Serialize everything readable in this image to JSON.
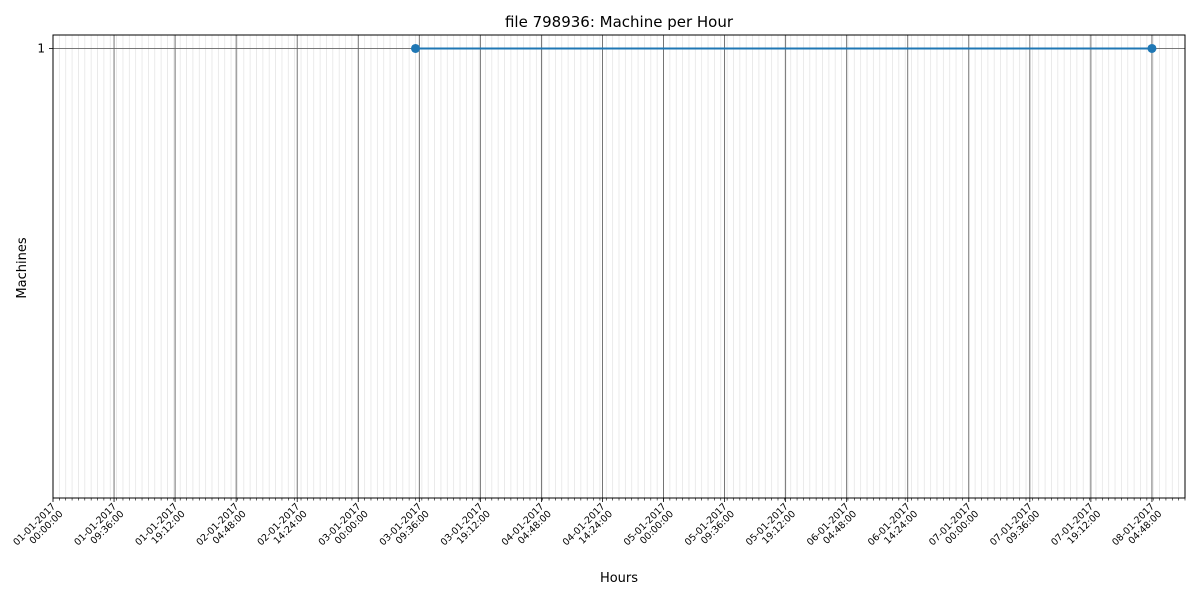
{
  "chart_data": {
    "type": "line",
    "title": "file 798936: Machine per Hour",
    "xlabel": "Hours",
    "ylabel": "Machines",
    "x_ticks": [
      [
        "01-01-2017",
        "00:00:00"
      ],
      [
        "01-01-2017",
        "09:36:00"
      ],
      [
        "01-01-2017",
        "19:12:00"
      ],
      [
        "02-01-2017",
        "04:48:00"
      ],
      [
        "02-01-2017",
        "14:24:00"
      ],
      [
        "03-01-2017",
        "00:00:00"
      ],
      [
        "03-01-2017",
        "09:36:00"
      ],
      [
        "03-01-2017",
        "19:12:00"
      ],
      [
        "04-01-2017",
        "04:48:00"
      ],
      [
        "04-01-2017",
        "14:24:00"
      ],
      [
        "05-01-2017",
        "00:00:00"
      ],
      [
        "05-01-2017",
        "09:36:00"
      ],
      [
        "05-01-2017",
        "19:12:00"
      ],
      [
        "06-01-2017",
        "04:48:00"
      ],
      [
        "06-01-2017",
        "14:24:00"
      ],
      [
        "07-01-2017",
        "00:00:00"
      ],
      [
        "07-01-2017",
        "09:36:00"
      ],
      [
        "07-01-2017",
        "19:12:00"
      ],
      [
        "08-01-2017",
        "04:48:00"
      ]
    ],
    "y_ticks": [
      "1"
    ],
    "points": [
      {
        "x": "03-01-2017 09:00:00",
        "y": 1
      },
      {
        "x": "08-01-2017 04:48:00",
        "y": 1
      }
    ],
    "xlim": [
      "01-01-2017 00:00:00",
      "08-01-2017 10:00:00"
    ],
    "ylim": [
      0.8,
      1.006
    ],
    "grid": true,
    "line_color": "#1f77b4"
  }
}
